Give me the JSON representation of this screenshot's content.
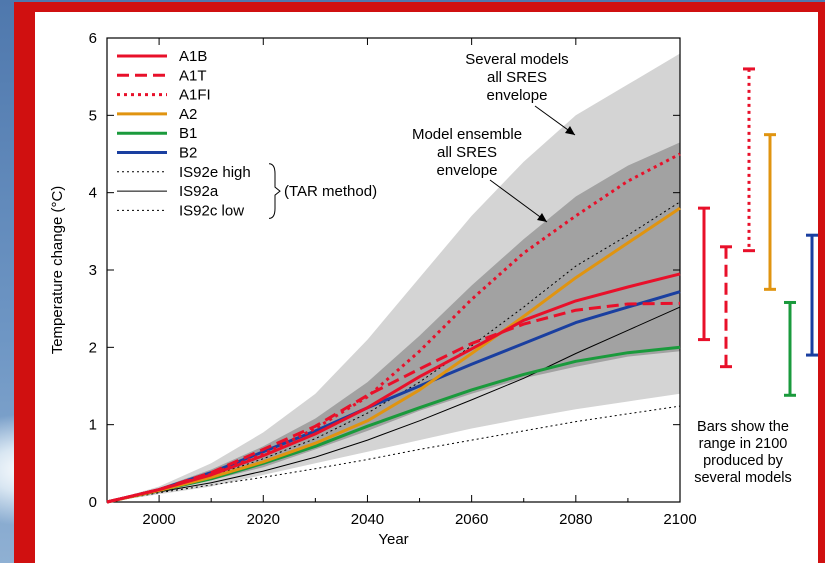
{
  "chart_data": {
    "type": "line",
    "xlabel": "Year",
    "ylabel": "Temperature change (°C)",
    "xlim": [
      1990,
      2100
    ],
    "ylim": [
      0,
      6
    ],
    "x_ticks": [
      2000,
      2020,
      2040,
      2060,
      2080,
      2100
    ],
    "y_ticks": [
      0,
      1,
      2,
      3,
      4,
      5,
      6
    ],
    "legend_position": "top-left",
    "legend_group_label": "(TAR method)",
    "x": [
      1990,
      2000,
      2010,
      2020,
      2030,
      2040,
      2050,
      2060,
      2070,
      2080,
      2090,
      2100
    ],
    "series": [
      {
        "name": "A1B",
        "color": "#e8102a",
        "dash": "solid",
        "values": [
          0,
          0.16,
          0.35,
          0.6,
          0.88,
          1.22,
          1.62,
          1.98,
          2.35,
          2.6,
          2.78,
          2.95
        ]
      },
      {
        "name": "A1T",
        "color": "#e8102a",
        "dash": "dashed",
        "values": [
          0,
          0.16,
          0.38,
          0.68,
          0.98,
          1.38,
          1.72,
          2.05,
          2.3,
          2.48,
          2.56,
          2.57
        ]
      },
      {
        "name": "A1FI",
        "color": "#e8102a",
        "dash": "dotted",
        "values": [
          0,
          0.16,
          0.36,
          0.62,
          0.95,
          1.36,
          1.95,
          2.62,
          3.22,
          3.7,
          4.15,
          4.5
        ]
      },
      {
        "name": "A2",
        "color": "#e09410",
        "dash": "solid",
        "values": [
          0,
          0.15,
          0.32,
          0.52,
          0.76,
          1.05,
          1.45,
          1.92,
          2.4,
          2.9,
          3.35,
          3.8
        ]
      },
      {
        "name": "B1",
        "color": "#1a9a3c",
        "dash": "solid",
        "values": [
          0,
          0.15,
          0.3,
          0.5,
          0.72,
          0.98,
          1.22,
          1.45,
          1.65,
          1.82,
          1.93,
          2.0
        ]
      },
      {
        "name": "B2",
        "color": "#1a3fa0",
        "dash": "solid",
        "values": [
          0,
          0.16,
          0.38,
          0.65,
          0.92,
          1.22,
          1.5,
          1.78,
          2.05,
          2.32,
          2.52,
          2.72
        ]
      },
      {
        "name": "IS92e high",
        "color": "#000000",
        "dash": "finedotted",
        "values": [
          0,
          0.15,
          0.33,
          0.56,
          0.82,
          1.15,
          1.55,
          2.02,
          2.52,
          3.05,
          3.45,
          3.88
        ]
      },
      {
        "name": "IS92a",
        "color": "#000000",
        "dash": "solid",
        "values": [
          0,
          0.13,
          0.25,
          0.4,
          0.58,
          0.8,
          1.05,
          1.32,
          1.6,
          1.92,
          2.22,
          2.52
        ]
      },
      {
        "name": "IS92c low",
        "color": "#000000",
        "dash": "finedotted",
        "values": [
          0,
          0.12,
          0.22,
          0.32,
          0.43,
          0.55,
          0.68,
          0.8,
          0.92,
          1.04,
          1.14,
          1.24
        ]
      }
    ],
    "envelopes": [
      {
        "label": "Several models all SRES envelope",
        "color": "#d4d4d4",
        "upper": [
          0,
          0.2,
          0.5,
          0.9,
          1.4,
          2.1,
          2.9,
          3.7,
          4.4,
          5.0,
          5.4,
          5.8
        ],
        "lower": [
          0,
          0.1,
          0.2,
          0.35,
          0.5,
          0.65,
          0.8,
          0.95,
          1.08,
          1.2,
          1.3,
          1.4
        ]
      },
      {
        "label": "Model ensemble all SRES envelope",
        "color": "#a2a2a2",
        "upper": [
          0,
          0.18,
          0.42,
          0.72,
          1.08,
          1.55,
          2.15,
          2.8,
          3.4,
          3.95,
          4.35,
          4.65
        ],
        "lower": [
          0,
          0.13,
          0.28,
          0.45,
          0.68,
          0.92,
          1.18,
          1.4,
          1.6,
          1.75,
          1.88,
          1.95
        ]
      }
    ],
    "range_bars": [
      {
        "scenario": "A1B",
        "color": "#e8102a",
        "dash": "solid",
        "low": 2.1,
        "high": 3.8
      },
      {
        "scenario": "A1T",
        "color": "#e8102a",
        "dash": "dashed",
        "low": 1.75,
        "high": 3.3
      },
      {
        "scenario": "A1FI",
        "color": "#e8102a",
        "dash": "dotted",
        "low": 3.25,
        "high": 5.6
      },
      {
        "scenario": "A2",
        "color": "#e09410",
        "dash": "solid",
        "low": 2.75,
        "high": 4.75
      },
      {
        "scenario": "B1",
        "color": "#1a9a3c",
        "dash": "solid",
        "low": 1.38,
        "high": 2.58
      },
      {
        "scenario": "B2",
        "color": "#1a3fa0",
        "dash": "solid",
        "low": 1.9,
        "high": 3.45
      }
    ],
    "annotations": {
      "several_models": [
        "Several models",
        "all SRES",
        "envelope"
      ],
      "model_ensemble": [
        "Model ensemble",
        "all SRES",
        "envelope"
      ],
      "bars_note": [
        "Bars show the",
        "range in 2100",
        "produced by",
        "several models"
      ]
    }
  }
}
